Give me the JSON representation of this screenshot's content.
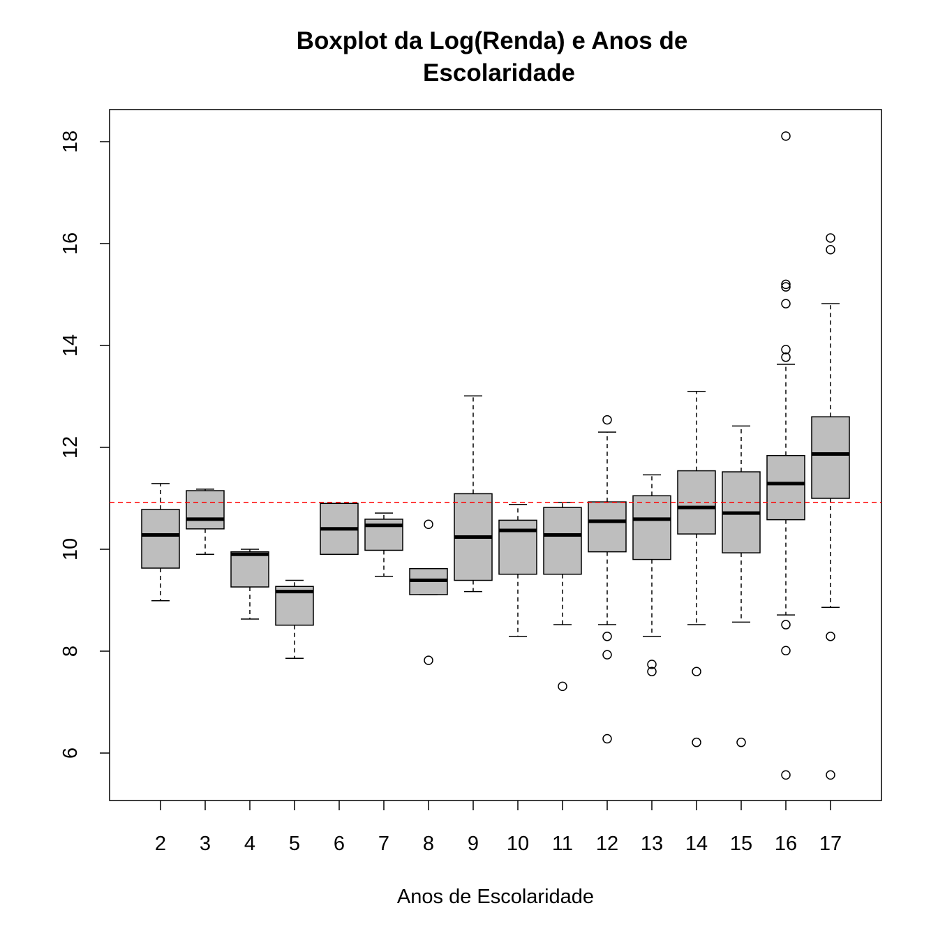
{
  "chart_data": {
    "type": "boxplot",
    "title_lines": [
      "Boxplot da Log(Renda) e Anos de",
      "Escolaridade"
    ],
    "xlabel": "Anos de Escolaridade",
    "ylabel": "",
    "ylim": [
      5,
      18.6
    ],
    "yticks": [
      6,
      8,
      10,
      12,
      14,
      16,
      18
    ],
    "reference_line": {
      "y": 10.92,
      "color": "#ff0000",
      "style": "dashed"
    },
    "box_fill": "#bebebe",
    "categories": [
      "2",
      "3",
      "4",
      "5",
      "6",
      "7",
      "8",
      "9",
      "10",
      "11",
      "12",
      "13",
      "14",
      "15",
      "16",
      "17"
    ],
    "boxes": [
      {
        "category": "2",
        "whisker_low": 8.99,
        "q1": 9.63,
        "median": 10.28,
        "q3": 10.78,
        "whisker_high": 11.29,
        "outliers": []
      },
      {
        "category": "3",
        "whisker_low": 9.9,
        "q1": 10.4,
        "median": 10.59,
        "q3": 11.15,
        "whisker_high": 11.18,
        "outliers": []
      },
      {
        "category": "4",
        "whisker_low": 8.63,
        "q1": 9.26,
        "median": 9.9,
        "q3": 9.95,
        "whisker_high": 10.0,
        "outliers": []
      },
      {
        "category": "5",
        "whisker_low": 7.86,
        "q1": 8.51,
        "median": 9.17,
        "q3": 9.27,
        "whisker_high": 9.39,
        "outliers": []
      },
      {
        "category": "6",
        "whisker_low": 9.9,
        "q1": 9.9,
        "median": 10.4,
        "q3": 10.9,
        "whisker_high": 10.9,
        "outliers": []
      },
      {
        "category": "7",
        "whisker_low": 9.47,
        "q1": 9.98,
        "median": 10.47,
        "q3": 10.59,
        "whisker_high": 10.71,
        "outliers": []
      },
      {
        "category": "8",
        "whisker_low": 9.11,
        "q1": 9.11,
        "median": 9.39,
        "q3": 9.62,
        "whisker_high": 9.62,
        "outliers": [
          10.49,
          7.82
        ]
      },
      {
        "category": "9",
        "whisker_low": 9.17,
        "q1": 9.39,
        "median": 10.24,
        "q3": 11.09,
        "whisker_high": 13.01,
        "outliers": []
      },
      {
        "category": "10",
        "whisker_low": 8.29,
        "q1": 9.51,
        "median": 10.37,
        "q3": 10.57,
        "whisker_high": 10.88,
        "outliers": []
      },
      {
        "category": "11",
        "whisker_low": 8.52,
        "q1": 9.51,
        "median": 10.28,
        "q3": 10.82,
        "whisker_high": 10.92,
        "outliers": [
          7.31
        ]
      },
      {
        "category": "12",
        "whisker_low": 8.52,
        "q1": 9.95,
        "median": 10.55,
        "q3": 10.93,
        "whisker_high": 12.3,
        "outliers": [
          12.54,
          8.29,
          7.93,
          6.28
        ]
      },
      {
        "category": "13",
        "whisker_low": 8.29,
        "q1": 9.8,
        "median": 10.59,
        "q3": 11.05,
        "whisker_high": 11.46,
        "outliers": [
          7.74,
          7.6
        ]
      },
      {
        "category": "14",
        "whisker_low": 8.52,
        "q1": 10.3,
        "median": 10.82,
        "q3": 11.54,
        "whisker_high": 13.1,
        "outliers": [
          7.6,
          6.21
        ]
      },
      {
        "category": "15",
        "whisker_low": 8.57,
        "q1": 9.93,
        "median": 10.71,
        "q3": 11.52,
        "whisker_high": 12.42,
        "outliers": [
          6.21
        ]
      },
      {
        "category": "16",
        "whisker_low": 8.71,
        "q1": 10.58,
        "median": 11.29,
        "q3": 11.84,
        "whisker_high": 13.63,
        "outliers": [
          18.11,
          15.2,
          15.15,
          14.82,
          13.92,
          13.77,
          8.52,
          8.01,
          5.57
        ]
      },
      {
        "category": "17",
        "whisker_low": 8.86,
        "q1": 11.0,
        "median": 11.87,
        "q3": 12.6,
        "whisker_high": 14.82,
        "outliers": [
          16.11,
          15.88,
          8.29,
          5.57
        ]
      }
    ]
  }
}
